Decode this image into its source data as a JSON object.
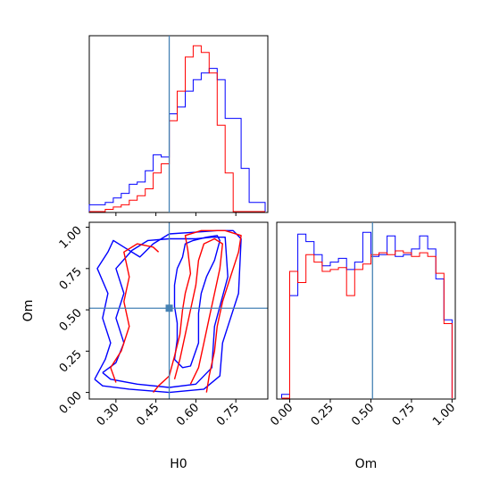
{
  "chart_data": {
    "type": "corner",
    "parameters": [
      "H0",
      "Om"
    ],
    "truth": {
      "H0": 0.5,
      "Om": 0.51
    },
    "colors": {
      "series_a": "#0000ff",
      "series_b": "#ff0000",
      "truth": "#4682b4"
    },
    "panels": [
      {
        "id": "hist-H0",
        "type": "histogram",
        "parameter": "H0",
        "xlim": [
          0.2,
          0.87
        ],
        "bins": [
          0.2,
          0.23,
          0.26,
          0.29,
          0.32,
          0.35,
          0.38,
          0.41,
          0.44,
          0.47,
          0.5,
          0.53,
          0.56,
          0.59,
          0.62,
          0.65,
          0.68,
          0.71,
          0.74,
          0.77,
          0.8,
          0.83,
          0.86
        ],
        "series": [
          {
            "color": "blue",
            "values": [
              3,
              3,
              4,
              6,
              8,
              12,
              13,
              18,
              25,
              24,
              43,
              46,
              53,
              58,
              61,
              63,
              58,
              41,
              41,
              19,
              4,
              4
            ]
          },
          {
            "color": "red",
            "values": [
              0,
              0,
              1,
              2,
              3,
              5,
              7,
              10,
              17,
              21,
              40,
              53,
              68,
              73,
              70,
              61,
              38,
              17,
              0,
              0,
              0,
              0
            ]
          }
        ]
      },
      {
        "id": "contour-H0-Om",
        "type": "contour",
        "xlabel": "H0",
        "ylabel": "Om",
        "xlim": [
          0.2,
          0.87
        ],
        "ylim": [
          -0.04,
          1.03
        ],
        "xticks": [
          "0.30",
          "0.45",
          "0.60",
          "0.75"
        ],
        "yticks": [
          "0.00",
          "0.25",
          "0.50",
          "0.75",
          "1.00"
        ],
        "series": [
          {
            "color": "blue",
            "levels": [
              [
                [
                  0.22,
                  0.08
                ],
                [
                  0.26,
                  0.2
                ],
                [
                  0.28,
                  0.3
                ],
                [
                  0.25,
                  0.45
                ],
                [
                  0.27,
                  0.6
                ],
                [
                  0.23,
                  0.75
                ],
                [
                  0.27,
                  0.85
                ],
                [
                  0.29,
                  0.92
                ],
                [
                  0.33,
                  0.88
                ],
                [
                  0.39,
                  0.82
                ],
                [
                  0.44,
                  0.9
                ],
                [
                  0.5,
                  0.96
                ],
                [
                  0.6,
                  0.97
                ],
                [
                  0.68,
                  0.98
                ],
                [
                  0.74,
                  0.98
                ],
                [
                  0.77,
                  0.93
                ],
                [
                  0.76,
                  0.6
                ],
                [
                  0.7,
                  0.3
                ],
                [
                  0.69,
                  0.1
                ],
                [
                  0.63,
                  0.02
                ],
                [
                  0.5,
                  0.0
                ],
                [
                  0.35,
                  0.02
                ],
                [
                  0.25,
                  0.04
                ],
                [
                  0.22,
                  0.08
                ]
              ],
              [
                [
                  0.25,
                  0.12
                ],
                [
                  0.3,
                  0.18
                ],
                [
                  0.33,
                  0.3
                ],
                [
                  0.3,
                  0.45
                ],
                [
                  0.33,
                  0.6
                ],
                [
                  0.3,
                  0.75
                ],
                [
                  0.36,
                  0.86
                ],
                [
                  0.42,
                  0.92
                ],
                [
                  0.5,
                  0.93
                ],
                [
                  0.6,
                  0.93
                ],
                [
                  0.66,
                  0.94
                ],
                [
                  0.71,
                  0.94
                ],
                [
                  0.72,
                  0.7
                ],
                [
                  0.67,
                  0.4
                ],
                [
                  0.66,
                  0.15
                ],
                [
                  0.6,
                  0.05
                ],
                [
                  0.5,
                  0.03
                ],
                [
                  0.38,
                  0.05
                ],
                [
                  0.28,
                  0.08
                ],
                [
                  0.25,
                  0.12
                ]
              ],
              [
                [
                  0.53,
                  0.75
                ],
                [
                  0.55,
                  0.82
                ],
                [
                  0.56,
                  0.9
                ],
                [
                  0.59,
                  0.92
                ],
                [
                  0.64,
                  0.94
                ],
                [
                  0.68,
                  0.95
                ],
                [
                  0.69,
                  0.92
                ],
                [
                  0.67,
                  0.8
                ],
                [
                  0.64,
                  0.7
                ],
                [
                  0.62,
                  0.6
                ],
                [
                  0.61,
                  0.48
                ],
                [
                  0.61,
                  0.3
                ],
                [
                  0.58,
                  0.16
                ],
                [
                  0.55,
                  0.15
                ],
                [
                  0.52,
                  0.2
                ],
                [
                  0.53,
                  0.32
                ],
                [
                  0.53,
                  0.42
                ],
                [
                  0.52,
                  0.52
                ],
                [
                  0.52,
                  0.65
                ],
                [
                  0.53,
                  0.75
                ]
              ]
            ]
          },
          {
            "color": "red",
            "levels": [
              [
                [
                  0.44,
                  0.0
                ],
                [
                  0.46,
                  0.04
                ],
                [
                  0.5,
                  0.1
                ],
                [
                  0.52,
                  0.22
                ],
                [
                  0.54,
                  0.35
                ],
                [
                  0.55,
                  0.5
                ],
                [
                  0.56,
                  0.6
                ],
                [
                  0.58,
                  0.72
                ],
                [
                  0.57,
                  0.86
                ],
                [
                  0.56,
                  0.95
                ],
                [
                  0.62,
                  0.98
                ],
                [
                  0.71,
                  0.98
                ],
                [
                  0.77,
                  0.95
                ],
                [
                  0.76,
                  0.85
                ],
                [
                  0.73,
                  0.7
                ],
                [
                  0.7,
                  0.55
                ],
                [
                  0.68,
                  0.4
                ],
                [
                  0.67,
                  0.25
                ],
                [
                  0.65,
                  0.1
                ],
                [
                  0.64,
                  0.0
                ]
              ],
              [
                [
                  0.3,
                  0.06
                ],
                [
                  0.28,
                  0.15
                ],
                [
                  0.32,
                  0.25
                ],
                [
                  0.35,
                  0.4
                ],
                [
                  0.33,
                  0.55
                ],
                [
                  0.35,
                  0.7
                ],
                [
                  0.33,
                  0.85
                ],
                [
                  0.38,
                  0.9
                ],
                [
                  0.44,
                  0.88
                ],
                [
                  0.46,
                  0.85
                ]
              ],
              [
                [
                  0.52,
                  0.08
                ],
                [
                  0.54,
                  0.2
                ],
                [
                  0.56,
                  0.35
                ],
                [
                  0.58,
                  0.5
                ],
                [
                  0.6,
                  0.65
                ],
                [
                  0.61,
                  0.8
                ],
                [
                  0.63,
                  0.9
                ],
                [
                  0.67,
                  0.93
                ],
                [
                  0.7,
                  0.9
                ],
                [
                  0.69,
                  0.75
                ],
                [
                  0.67,
                  0.6
                ],
                [
                  0.65,
                  0.45
                ],
                [
                  0.63,
                  0.3
                ],
                [
                  0.61,
                  0.15
                ],
                [
                  0.58,
                  0.05
                ]
              ]
            ]
          }
        ]
      },
      {
        "id": "hist-Om",
        "type": "histogram",
        "parameter": "Om",
        "xlabel": "Om",
        "xlim": [
          -0.08,
          1.02
        ],
        "xticks": [
          "0.00",
          "0.25",
          "0.50",
          "0.75",
          "1.00"
        ],
        "bins": [
          -0.05,
          0.0,
          0.05,
          0.1,
          0.15,
          0.2,
          0.25,
          0.3,
          0.35,
          0.4,
          0.45,
          0.5,
          0.55,
          0.6,
          0.65,
          0.7,
          0.75,
          0.8,
          0.85,
          0.9,
          0.95,
          1.0
        ],
        "series": [
          {
            "color": "blue",
            "values": [
              2,
              55,
              88,
              84,
              77,
              71,
              73,
              75,
              69,
              73,
              89,
              76,
              77,
              87,
              76,
              77,
              80,
              87,
              80,
              64,
              42
            ]
          },
          {
            "color": "red",
            "values": [
              0,
              68,
              62,
              77,
              73,
              68,
              69,
              70,
              55,
              69,
              72,
              77,
              78,
              77,
              79,
              78,
              76,
              78,
              76,
              67,
              40
            ]
          }
        ]
      }
    ]
  }
}
